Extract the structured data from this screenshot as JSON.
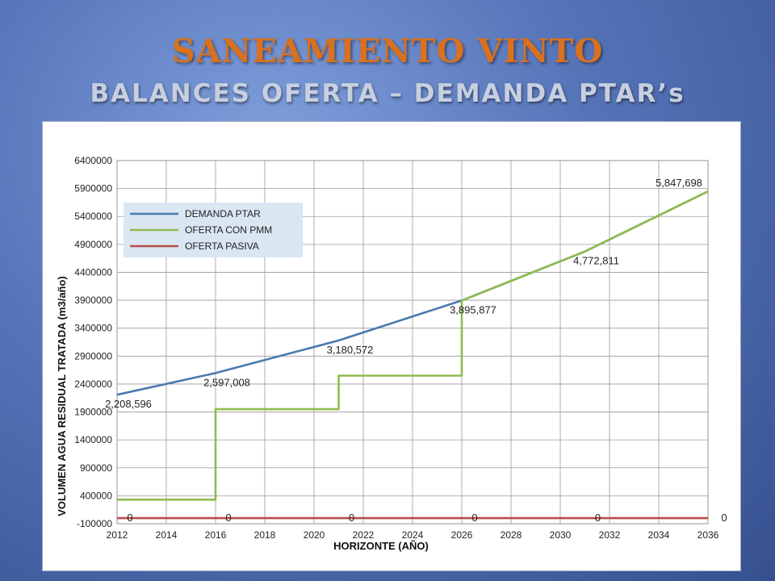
{
  "slide": {
    "title": "SANEAMIENTO VINTO",
    "subtitle": "BALANCES OFERTA – DEMANDA PTAR’s"
  },
  "colors": {
    "demanda": "#4a7ab0",
    "oferta_pmm": "#8fbb4e",
    "oferta_pasiva": "#b84e4a",
    "legend_bg": "#dbe6f3"
  },
  "chart_data": {
    "type": "line",
    "title": "",
    "xlabel": "HORIZONTE (AÑO)",
    "ylabel": "VOLUMEN AGUA RESIDUAL TRATADA (m3/año)",
    "xlim": [
      2012,
      2036
    ],
    "ylim": [
      -100000,
      6400000
    ],
    "x_ticks": [
      2012,
      2014,
      2016,
      2018,
      2020,
      2022,
      2024,
      2026,
      2028,
      2030,
      2032,
      2034,
      2036
    ],
    "y_ticks": [
      -100000,
      400000,
      900000,
      1400000,
      1900000,
      2400000,
      2900000,
      3400000,
      3900000,
      4400000,
      4900000,
      5400000,
      5900000,
      6400000
    ],
    "grid": true,
    "legend_position": "top-left",
    "series": [
      {
        "name": "DEMANDA PTAR",
        "color": "#4a7ab0",
        "points": [
          [
            2012,
            2208596
          ],
          [
            2016,
            2597008
          ],
          [
            2021,
            3180572
          ],
          [
            2026,
            3895877
          ],
          [
            2031,
            4772811
          ],
          [
            2036,
            5847698
          ]
        ]
      },
      {
        "name": "OFERTA CON PMM",
        "color": "#8fbb4e",
        "points": [
          [
            2012,
            330000
          ],
          [
            2016,
            330000
          ],
          [
            2016,
            1950000
          ],
          [
            2021,
            1950000
          ],
          [
            2021,
            2550000
          ],
          [
            2026,
            2550000
          ],
          [
            2026,
            3895877
          ],
          [
            2031,
            4772811
          ],
          [
            2036,
            5847698
          ]
        ]
      },
      {
        "name": "OFERTA PASIVA",
        "color": "#b84e4a",
        "points": [
          [
            2012,
            0
          ],
          [
            2016,
            0
          ],
          [
            2021,
            0
          ],
          [
            2026,
            0
          ],
          [
            2031,
            0
          ],
          [
            2036,
            0
          ]
        ]
      }
    ],
    "data_labels": [
      {
        "x": 2012,
        "y": 2208596,
        "text": "2,208,596"
      },
      {
        "x": 2016,
        "y": 2597008,
        "text": "2,597,008"
      },
      {
        "x": 2021,
        "y": 3180572,
        "text": "3,180,572"
      },
      {
        "x": 2026,
        "y": 3895877,
        "text": "3,895,877"
      },
      {
        "x": 2031,
        "y": 4772811,
        "text": "4,772,811"
      },
      {
        "x": 2036,
        "y": 5847698,
        "text": "5,847,698"
      },
      {
        "x": 2012,
        "y": 0,
        "text": "0"
      },
      {
        "x": 2016,
        "y": 0,
        "text": "0"
      },
      {
        "x": 2021,
        "y": 0,
        "text": "0"
      },
      {
        "x": 2026,
        "y": 0,
        "text": "0"
      },
      {
        "x": 2031,
        "y": 0,
        "text": "0"
      },
      {
        "x": 2036,
        "y": 0,
        "text": "0"
      }
    ]
  }
}
